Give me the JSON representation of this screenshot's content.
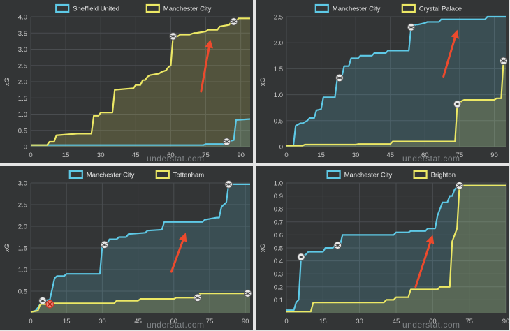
{
  "colors": {
    "home": "#5ec9e6",
    "away": "#ece865",
    "arrow": "#ec4a2d",
    "grid": "#4a4d50",
    "panel_bg": "#333536"
  },
  "panels": [
    {
      "name": "sheffield-vs-city",
      "watermark": "understat.com",
      "chart_data": {
        "type": "area",
        "xlabel": "",
        "ylabel": "xG",
        "xlim": [
          0,
          94
        ],
        "ylim": [
          0,
          4
        ],
        "xticks": [
          "0",
          "15",
          "30",
          "45",
          "60",
          "75",
          "90"
        ],
        "yticks": [
          "0",
          "0.5",
          "1.0",
          "1.5",
          "2.0",
          "2.5",
          "3.0",
          "3.5",
          "4.0"
        ],
        "yvals": [
          0,
          0.5,
          1.0,
          1.5,
          2.0,
          2.5,
          3.0,
          3.5,
          4.0
        ],
        "series": [
          {
            "name": "Sheffield United",
            "color": "#5ec9e6",
            "x": [
              0,
              74,
              75,
              83,
              84,
              87,
              88,
              94
            ],
            "y": [
              0.05,
              0.05,
              0.08,
              0.08,
              0.15,
              0.2,
              0.82,
              0.85
            ],
            "goals": [
              84
            ]
          },
          {
            "name": "Manchester City",
            "color": "#ece865",
            "x": [
              0,
              7,
              8,
              10,
              11,
              20,
              26,
              27,
              29,
              30,
              35,
              36,
              44,
              45,
              47,
              48,
              49,
              50,
              51,
              55,
              56,
              58,
              59,
              60,
              61,
              62,
              63,
              64,
              68,
              70,
              71,
              75,
              76,
              80,
              81,
              85,
              86,
              88,
              89,
              94
            ],
            "y": [
              0.05,
              0.05,
              0.15,
              0.15,
              0.35,
              0.4,
              0.4,
              0.95,
              0.95,
              1.05,
              1.05,
              1.75,
              1.8,
              1.9,
              1.9,
              2.05,
              2.05,
              2.15,
              2.2,
              2.25,
              2.3,
              2.35,
              2.45,
              2.5,
              3.4,
              3.45,
              3.4,
              3.45,
              3.45,
              3.5,
              3.5,
              3.55,
              3.6,
              3.6,
              3.7,
              3.75,
              3.85,
              3.85,
              3.95,
              3.95
            ],
            "goals": [
              61,
              87
            ]
          }
        ],
        "arrow": {
          "from": [
            73,
            1.7
          ],
          "to": [
            77,
            3.3
          ]
        }
      }
    },
    {
      "name": "city-vs-palace",
      "watermark": "understat.com",
      "chart_data": {
        "type": "area",
        "xlabel": "",
        "ylabel": "xG",
        "xlim": [
          0,
          95
        ],
        "ylim": [
          0,
          2.5
        ],
        "xticks": [
          "0",
          "15",
          "30",
          "45",
          "60",
          "75",
          "90"
        ],
        "yticks": [
          "0",
          "0.5",
          "1.0",
          "1.5",
          "2.0",
          "2.5"
        ],
        "yvals": [
          0,
          0.5,
          1.0,
          1.5,
          2.0,
          2.5
        ],
        "series": [
          {
            "name": "Manchester City",
            "color": "#5ec9e6",
            "x": [
              0,
              3,
              4,
              6,
              7,
              9,
              10,
              12,
              13,
              15,
              16,
              21,
              22,
              24,
              25,
              27,
              28,
              31,
              32,
              37,
              38,
              43,
              44,
              53,
              54,
              56,
              57,
              60,
              61,
              66,
              67,
              86,
              87,
              95
            ],
            "y": [
              0.02,
              0.02,
              0.4,
              0.45,
              0.45,
              0.5,
              0.55,
              0.55,
              0.7,
              0.72,
              0.95,
              0.95,
              1.3,
              1.35,
              1.55,
              1.55,
              1.7,
              1.7,
              1.75,
              1.75,
              1.8,
              1.8,
              1.85,
              1.85,
              2.3,
              2.35,
              2.35,
              2.38,
              2.4,
              2.4,
              2.45,
              2.45,
              2.5,
              2.5
            ],
            "goals": [
              23,
              54
            ]
          },
          {
            "name": "Crystal Palace",
            "color": "#ece865",
            "x": [
              0,
              7,
              8,
              30,
              31,
              45,
              46,
              73,
              74,
              76,
              77,
              90,
              91,
              93,
              94,
              95
            ],
            "y": [
              0.02,
              0.02,
              0.04,
              0.04,
              0.05,
              0.05,
              0.1,
              0.1,
              0.82,
              0.88,
              0.9,
              0.9,
              0.93,
              0.93,
              1.65,
              1.65
            ],
            "goals": [
              74,
              94
            ]
          }
        ],
        "arrow": {
          "from": [
            68,
            1.35
          ],
          "to": [
            74,
            2.25
          ]
        }
      }
    },
    {
      "name": "city-vs-tottenham",
      "watermark": "understat.com",
      "chart_data": {
        "type": "area",
        "xlabel": "",
        "ylabel": "xG",
        "xlim": [
          0,
          92
        ],
        "ylim": [
          0,
          3
        ],
        "xticks": [
          "0",
          "15",
          "30",
          "45",
          "60",
          "75",
          "90"
        ],
        "yticks": [
          "0.5",
          "1.0",
          "1.5",
          "2.0",
          "2.5",
          "3.0"
        ],
        "yvals": [
          0.5,
          1.0,
          1.5,
          2.0,
          2.5,
          3.0
        ],
        "series": [
          {
            "name": "Manchester City",
            "color": "#5ec9e6",
            "x": [
              0,
              2,
              3,
              4,
              5,
              8,
              9,
              10,
              11,
              14,
              15,
              29,
              30,
              32,
              33,
              36,
              37,
              40,
              41,
              48,
              49,
              55,
              56,
              72,
              73,
              78,
              79,
              80,
              81,
              82,
              83,
              92
            ],
            "y": [
              0.02,
              0.05,
              0.12,
              0.2,
              0.28,
              0.3,
              0.55,
              0.8,
              0.85,
              0.85,
              0.9,
              0.9,
              1.55,
              1.6,
              1.7,
              1.7,
              1.75,
              1.75,
              1.82,
              1.85,
              1.9,
              1.92,
              2.1,
              2.1,
              2.15,
              2.2,
              2.2,
              2.45,
              2.5,
              2.55,
              2.97,
              2.97
            ],
            "goals": [
              5,
              31,
              83
            ]
          },
          {
            "name": "Tottenham",
            "color": "#ece865",
            "x": [
              0,
              3,
              4,
              8,
              9,
              35,
              36,
              45,
              46,
              60,
              61,
              70,
              71,
              92
            ],
            "y": [
              0.02,
              0.05,
              0.2,
              0.2,
              0.22,
              0.22,
              0.28,
              0.28,
              0.32,
              0.32,
              0.35,
              0.35,
              0.45,
              0.45
            ],
            "goals": [
              70,
              91
            ],
            "own_goals": [
              8
            ]
          }
        ],
        "arrow": {
          "from": [
            59,
            0.95
          ],
          "to": [
            65,
            1.85
          ]
        }
      }
    },
    {
      "name": "city-vs-brighton",
      "watermark": "understat.com",
      "chart_data": {
        "type": "area",
        "xlabel": "",
        "ylabel": "xG",
        "xlim": [
          0,
          90
        ],
        "ylim": [
          0,
          1
        ],
        "xticks": [
          "0",
          "15",
          "30",
          "45",
          "60",
          "75",
          "90"
        ],
        "yticks": [
          "0.1",
          "0.2",
          "0.3",
          "0.4",
          "0.5",
          "0.6",
          "0.7",
          "0.8",
          "0.9",
          "1.0"
        ],
        "yvals": [
          0.1,
          0.2,
          0.3,
          0.4,
          0.5,
          0.6,
          0.7,
          0.8,
          0.9,
          1.0
        ],
        "series": [
          {
            "name": "Manchester City",
            "color": "#5ec9e6",
            "x": [
              0,
              3,
              4,
              5,
              6,
              8,
              9,
              15,
              16,
              19,
              20,
              22,
              23,
              44,
              45,
              50,
              51,
              57,
              58,
              61,
              62,
              63,
              64,
              66,
              67,
              68,
              69,
              70,
              71,
              90
            ],
            "y": [
              0.02,
              0.02,
              0.08,
              0.1,
              0.43,
              0.45,
              0.47,
              0.47,
              0.5,
              0.5,
              0.52,
              0.52,
              0.6,
              0.6,
              0.62,
              0.62,
              0.63,
              0.63,
              0.65,
              0.65,
              0.75,
              0.8,
              0.85,
              0.85,
              0.9,
              0.9,
              0.95,
              0.97,
              0.98,
              0.98
            ],
            "goals": [
              6,
              21,
              71
            ]
          },
          {
            "name": "Brighton",
            "color": "#ece865",
            "x": [
              0,
              10,
              11,
              40,
              41,
              44,
              45,
              50,
              51,
              62,
              63,
              67,
              68,
              69,
              70,
              71,
              90
            ],
            "y": [
              0.01,
              0.01,
              0.08,
              0.08,
              0.1,
              0.1,
              0.12,
              0.12,
              0.18,
              0.18,
              0.2,
              0.2,
              0.55,
              0.6,
              0.65,
              0.98,
              0.98
            ],
            "goals": [
              71
            ]
          }
        ],
        "arrow": {
          "from": [
            53,
            0.2
          ],
          "to": [
            60,
            0.6
          ]
        }
      }
    }
  ]
}
